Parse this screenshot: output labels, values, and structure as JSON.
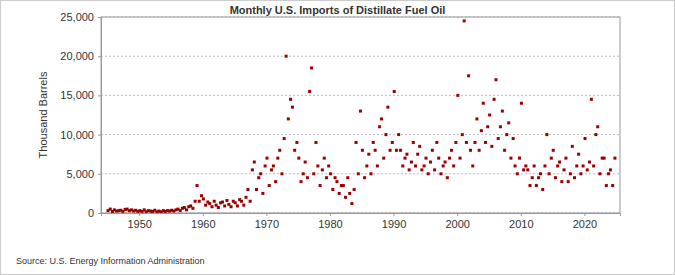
{
  "chart_data": {
    "type": "scatter",
    "title": "Monthly U.S. Imports of Distillate Fuel Oil",
    "y_label": "Thousand Barrels",
    "source": "Source: U.S. Energy Information Administration",
    "color": "#990000",
    "marker": "square",
    "grid": true,
    "xlim": [
      1944,
      2025.6
    ],
    "xticks": [
      1950,
      1960,
      1970,
      1980,
      1990,
      2000,
      2010,
      2020
    ],
    "ylim": [
      0,
      25000
    ],
    "yticks": [
      0,
      {
        "value": 5000,
        "label": "5,000"
      },
      {
        "value": 10000,
        "label": "10,000"
      },
      {
        "value": 15000,
        "label": "15,000"
      },
      {
        "value": 20000,
        "label": "20,000"
      },
      {
        "value": 25000,
        "label": "25,000"
      }
    ],
    "x": [
      1945.1,
      1945.45,
      1945.8,
      1946.1,
      1946.45,
      1946.8,
      1947.1,
      1947.45,
      1947.8,
      1948.1,
      1948.45,
      1948.8,
      1949.1,
      1949.45,
      1949.8,
      1950.1,
      1950.45,
      1950.8,
      1951.1,
      1951.45,
      1951.8,
      1952.1,
      1952.45,
      1952.8,
      1953.1,
      1953.45,
      1953.8,
      1954.1,
      1954.45,
      1954.8,
      1955.1,
      1955.45,
      1955.8,
      1956.1,
      1956.45,
      1956.8,
      1957.1,
      1957.45,
      1957.8,
      1958.1,
      1958.45,
      1958.8,
      1959.1,
      1959.45,
      1959.8,
      1960.1,
      1960.45,
      1960.8,
      1961.1,
      1961.45,
      1961.8,
      1962.1,
      1962.45,
      1962.8,
      1963.1,
      1963.45,
      1963.8,
      1964.1,
      1964.45,
      1964.8,
      1965.1,
      1965.45,
      1965.8,
      1966.1,
      1966.45,
      1966.8,
      1967.1,
      1967.45,
      1967.8,
      1968.1,
      1968.45,
      1968.8,
      1969.1,
      1969.45,
      1969.8,
      1970.1,
      1970.45,
      1970.8,
      1971.1,
      1971.45,
      1971.8,
      1972.1,
      1972.45,
      1972.8,
      1973.1,
      1973.45,
      1973.8,
      1974.1,
      1974.45,
      1974.8,
      1975.1,
      1975.45,
      1975.8,
      1976.1,
      1976.45,
      1976.8,
      1977.1,
      1977.45,
      1977.8,
      1978.1,
      1978.45,
      1978.8,
      1979.1,
      1979.45,
      1979.8,
      1980.1,
      1980.45,
      1980.8,
      1981.1,
      1981.45,
      1981.8,
      1982.1,
      1982.45,
      1982.8,
      1983.1,
      1983.45,
      1983.8,
      1984.1,
      1984.45,
      1984.8,
      1985.1,
      1985.45,
      1985.8,
      1986.1,
      1986.45,
      1986.8,
      1987.1,
      1987.45,
      1987.8,
      1988.1,
      1988.45,
      1988.8,
      1989.1,
      1989.45,
      1989.8,
      1990.1,
      1990.45,
      1990.8,
      1991.1,
      1991.45,
      1991.8,
      1992.1,
      1992.45,
      1992.8,
      1993.1,
      1993.45,
      1993.8,
      1994.1,
      1994.45,
      1994.8,
      1995.1,
      1995.45,
      1995.8,
      1996.1,
      1996.45,
      1996.8,
      1997.1,
      1997.45,
      1997.8,
      1998.1,
      1998.45,
      1998.8,
      1999.1,
      1999.45,
      1999.8,
      2000.1,
      2000.45,
      2000.8,
      2001.1,
      2001.45,
      2001.8,
      2002.1,
      2002.45,
      2002.8,
      2003.1,
      2003.45,
      2003.8,
      2004.1,
      2004.45,
      2004.8,
      2005.1,
      2005.45,
      2005.8,
      2006.1,
      2006.45,
      2006.8,
      2007.1,
      2007.45,
      2007.8,
      2008.1,
      2008.45,
      2008.8,
      2009.1,
      2009.45,
      2009.8,
      2010.1,
      2010.45,
      2010.8,
      2011.1,
      2011.45,
      2011.8,
      2012.1,
      2012.45,
      2012.8,
      2013.1,
      2013.45,
      2013.8,
      2014.1,
      2014.45,
      2014.8,
      2015.1,
      2015.45,
      2015.8,
      2016.1,
      2016.45,
      2016.8,
      2017.1,
      2017.45,
      2017.8,
      2018.1,
      2018.45,
      2018.8,
      2019.1,
      2019.45,
      2019.8,
      2020.1,
      2020.45,
      2020.8,
      2021.1,
      2021.45,
      2021.8,
      2022.1,
      2022.45,
      2022.8,
      2023.1,
      2023.45,
      2023.8,
      2024.1,
      2024.45,
      2024.8
    ],
    "values": [
      300,
      500,
      200,
      400,
      250,
      300,
      350,
      200,
      450,
      500,
      300,
      400,
      250,
      350,
      200,
      300,
      200,
      400,
      150,
      300,
      250,
      200,
      350,
      150,
      250,
      150,
      300,
      200,
      300,
      250,
      350,
      250,
      400,
      500,
      300,
      600,
      700,
      400,
      800,
      900,
      600,
      1500,
      3500,
      1500,
      2200,
      1800,
      1000,
      1400,
      1200,
      800,
      1500,
      1000,
      700,
      1300,
      1400,
      900,
      1600,
      1100,
      800,
      1500,
      1300,
      900,
      1700,
      1500,
      1000,
      2000,
      3000,
      1500,
      5500,
      6500,
      3000,
      4500,
      5000,
      2500,
      6000,
      7000,
      3500,
      5500,
      6000,
      4000,
      7000,
      8000,
      5000,
      9500,
      20000,
      12000,
      14500,
      13500,
      8000,
      9000,
      7000,
      4000,
      5000,
      6500,
      4500,
      15500,
      18500,
      5000,
      9000,
      6000,
      3500,
      5500,
      7000,
      4500,
      6000,
      5000,
      3000,
      4500,
      4000,
      2500,
      3500,
      3500,
      2000,
      4500,
      2500,
      1200,
      3000,
      9000,
      5000,
      13000,
      8000,
      4500,
      6000,
      7500,
      5000,
      9000,
      8000,
      6000,
      11000,
      12000,
      7000,
      10000,
      13500,
      8000,
      9000,
      15500,
      8000,
      10000,
      8000,
      6000,
      7000,
      7500,
      5500,
      6500,
      9000,
      6000,
      7500,
      8500,
      5500,
      6000,
      7000,
      5000,
      6500,
      8000,
      5500,
      9000,
      7000,
      5000,
      6000,
      6500,
      4500,
      7000,
      8000,
      6000,
      9000,
      15000,
      7000,
      10000,
      24500,
      9000,
      17500,
      8000,
      6000,
      9000,
      12000,
      8000,
      10500,
      14000,
      9000,
      11000,
      12500,
      8500,
      14500,
      17000,
      9500,
      11000,
      13000,
      8000,
      10000,
      11500,
      7000,
      9500,
      6000,
      5000,
      7000,
      14000,
      5500,
      6000,
      5500,
      3500,
      4500,
      6000,
      3500,
      4500,
      5000,
      3000,
      6000,
      10000,
      5000,
      7000,
      8000,
      4500,
      6000,
      6500,
      4000,
      5500,
      7000,
      4000,
      5000,
      8500,
      4500,
      6000,
      7500,
      5000,
      6000,
      9500,
      5500,
      6500,
      14500,
      6000,
      10000,
      11000,
      5000,
      7000,
      7000,
      3500,
      5000,
      5500,
      3500,
      7000
    ]
  }
}
